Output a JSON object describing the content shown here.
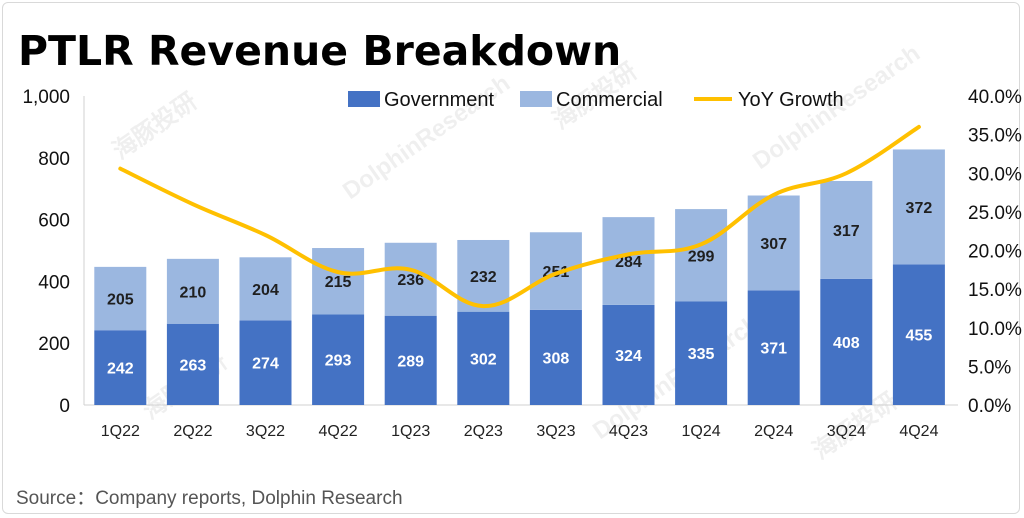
{
  "colors": {
    "government": "#4472C4",
    "commercial": "#9BB7E0",
    "growth": "#FFC000",
    "axis": "#d0d0d0"
  },
  "chart_data": {
    "type": "bar",
    "stacked": true,
    "title": "PTLR Revenue Breakdown",
    "categories": [
      "1Q22",
      "2Q22",
      "3Q22",
      "4Q22",
      "1Q23",
      "2Q23",
      "3Q23",
      "4Q23",
      "1Q24",
      "2Q24",
      "3Q24",
      "4Q24"
    ],
    "series": [
      {
        "name": "Government",
        "type": "bar",
        "axis": "left",
        "values": [
          242,
          263,
          274,
          293,
          289,
          302,
          308,
          324,
          335,
          371,
          408,
          455
        ]
      },
      {
        "name": "Commercial",
        "type": "bar",
        "axis": "left",
        "values": [
          205,
          210,
          204,
          215,
          236,
          232,
          251,
          284,
          299,
          307,
          317,
          372
        ]
      },
      {
        "name": "YoY Growth",
        "type": "line",
        "axis": "right",
        "values": [
          30.6,
          26.0,
          22.0,
          17.2,
          17.5,
          12.8,
          17.0,
          19.5,
          20.8,
          27.2,
          30.0,
          36.0
        ]
      }
    ],
    "ylim": [
      0,
      1000
    ],
    "yticks": [
      "0",
      "200",
      "400",
      "600",
      "800",
      "1,000"
    ],
    "y2lim": [
      0,
      40
    ],
    "y2ticks": [
      "0.0%",
      "5.0%",
      "10.0%",
      "15.0%",
      "20.0%",
      "25.0%",
      "30.0%",
      "35.0%",
      "40.0%"
    ],
    "legend_position": "top",
    "grid": false
  },
  "source": "Source：Company reports, Dolphin Research",
  "watermarks": [
    "海豚投研",
    "DolphinResearch"
  ]
}
